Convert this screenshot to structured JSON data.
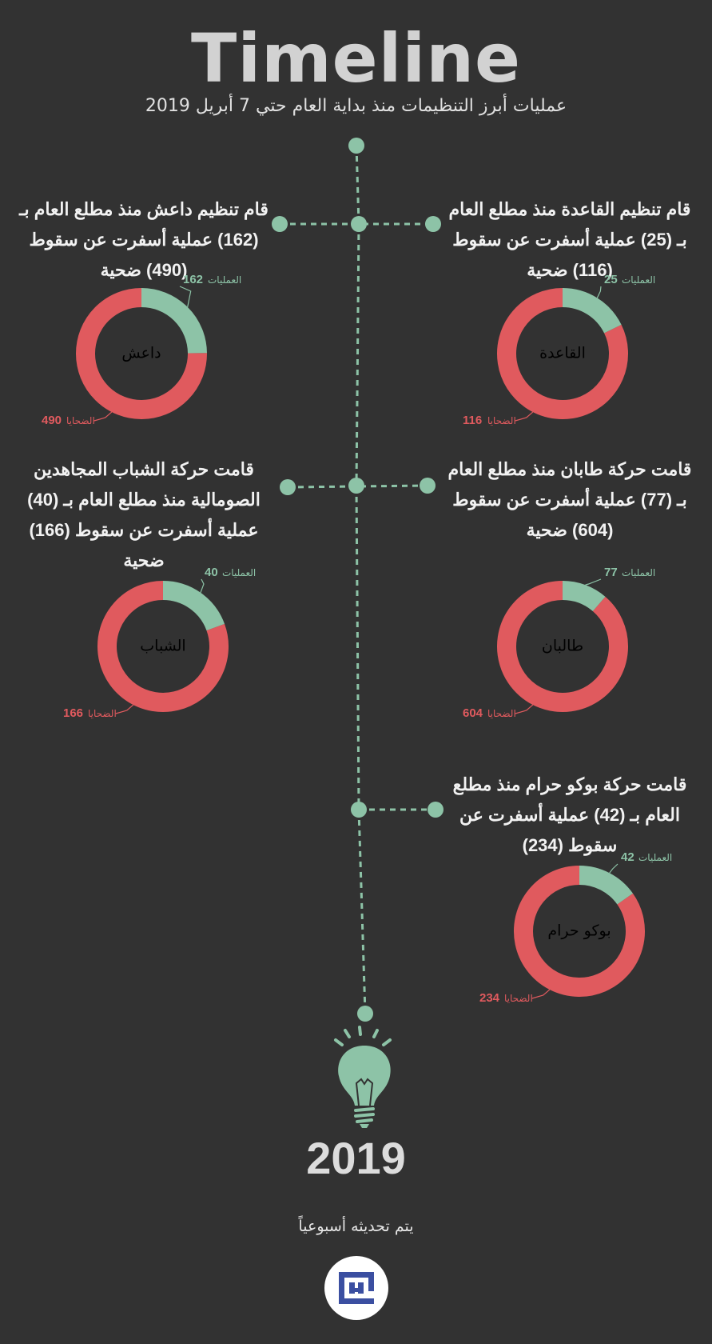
{
  "header": {
    "title": "Timeline",
    "subtitle": "عمليات أبرز التنظيمات منذ بداية العام حتي 7 أبريل 2019"
  },
  "colors": {
    "operations": "#8dc3a7",
    "victims": "#e05a5e",
    "line": "#8dc3a7",
    "background": "#323232"
  },
  "labels": {
    "operations": "العمليات",
    "victims": "الضحايا"
  },
  "captions": {
    "daesh": "قام تنظيم داعش منذ مطلع العام بـ (162) عملية أسفرت عن سقوط (490) ضحية",
    "qaeda": "قام تنظيم القاعدة منذ مطلع العام بـ (25) عملية أسفرت عن سقوط (116) ضحية",
    "shabab": "قامت حركة الشباب المجاهدين الصومالية منذ مطلع العام بـ (40) عملية أسفرت عن سقوط (166) ضحية",
    "taliban": "قامت حركة طابان منذ مطلع العام بـ (77) عملية أسفرت عن سقوط (604) ضحية",
    "boko": "قامت حركة بوكو حرام منذ مطلع العام بـ (42) عملية أسفرت عن سقوط (234)"
  },
  "chart_data": [
    {
      "type": "pie",
      "name": "داعش",
      "categories": [
        "العمليات",
        "الضحايا"
      ],
      "values": [
        162,
        490
      ]
    },
    {
      "type": "pie",
      "name": "القاعدة",
      "categories": [
        "العمليات",
        "الضحايا"
      ],
      "values": [
        25,
        116
      ]
    },
    {
      "type": "pie",
      "name": "الشباب",
      "categories": [
        "العمليات",
        "الضحايا"
      ],
      "values": [
        40,
        166
      ]
    },
    {
      "type": "pie",
      "name": "طالبان",
      "categories": [
        "العمليات",
        "الضحايا"
      ],
      "values": [
        77,
        604
      ]
    },
    {
      "type": "pie",
      "name": "بوكو حرام",
      "categories": [
        "العمليات",
        "الضحايا"
      ],
      "values": [
        42,
        234
      ]
    }
  ],
  "footer": {
    "year": "2019",
    "update_note": "يتم تحديثه أسبوعياً",
    "bulb_icon": "lightbulb-icon",
    "logo_icon": "kufic-logo-icon"
  }
}
